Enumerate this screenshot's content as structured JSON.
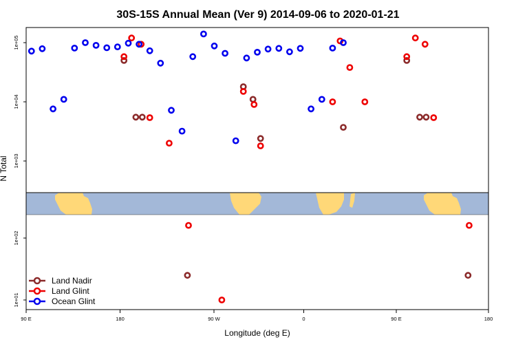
{
  "chart_data": {
    "type": "scatter",
    "title": "30S-15S Annual Mean (Ver 9)   2014-09-06 to 2020-01-21",
    "xlabel": "Longitude (deg E)",
    "ylabel": "N Total",
    "y_scale": "log",
    "ylim": [
      8,
      200000
    ],
    "x_tick_labels": [
      "90 E",
      "180",
      "90 W",
      "0",
      "90 E",
      "180"
    ],
    "y_tick_labels": [
      "1e+01",
      "1e+02",
      "1e+03",
      "1e+04",
      "1e+05"
    ],
    "colors": {
      "land_nadir": "#8B2A2A",
      "land_glint": "#EE0000",
      "ocean_glint": "#0000EE",
      "ocean": "#A3B8D8",
      "land": "#FFD878"
    },
    "legend": {
      "position": "bottom-left",
      "entries": [
        {
          "label": "Land Nadir",
          "color": "#8B2A2A"
        },
        {
          "label": "Land Glint",
          "color": "#EE0000"
        },
        {
          "label": "Ocean Glint",
          "color": "#0000EE"
        }
      ]
    },
    "series": [
      {
        "name": "Land Nadir",
        "color": "#8B2A2A",
        "points": [
          {
            "x": 1,
            "y": 50000
          },
          {
            "x": 12,
            "y": 5500
          },
          {
            "x": 18,
            "y": 5500
          },
          {
            "x": 60,
            "y": 25
          },
          {
            "x": 112,
            "y": 18000
          },
          {
            "x": 121,
            "y": 11000
          },
          {
            "x": 128,
            "y": 2400
          },
          {
            "x": 205,
            "y": 3700
          },
          {
            "x": 264,
            "y": 50000
          },
          {
            "x": 276,
            "y": 5500
          },
          {
            "x": 282,
            "y": 5500
          },
          {
            "x": 321,
            "y": 25
          }
        ]
      },
      {
        "name": "Land Glint",
        "color": "#EE0000",
        "points": [
          {
            "x": 1,
            "y": 58000
          },
          {
            "x": 8,
            "y": 120000
          },
          {
            "x": 17,
            "y": 94000
          },
          {
            "x": 25,
            "y": 5400
          },
          {
            "x": 43,
            "y": 2000
          },
          {
            "x": 61,
            "y": 160
          },
          {
            "x": 92,
            "y": 10
          },
          {
            "x": 112,
            "y": 15000
          },
          {
            "x": 122,
            "y": 9000
          },
          {
            "x": 128,
            "y": 1800
          },
          {
            "x": 195,
            "y": 10000
          },
          {
            "x": 202,
            "y": 107000
          },
          {
            "x": 211,
            "y": 38000
          },
          {
            "x": 225,
            "y": 10000
          },
          {
            "x": 264,
            "y": 58000
          },
          {
            "x": 272,
            "y": 120000
          },
          {
            "x": 281,
            "y": 94000
          },
          {
            "x": 289,
            "y": 5400
          },
          {
            "x": 322,
            "y": 160
          }
        ]
      },
      {
        "name": "Ocean Glint",
        "color": "#0000EE",
        "points": [
          {
            "x": -85,
            "y": 72000
          },
          {
            "x": -75,
            "y": 79000
          },
          {
            "x": -65,
            "y": 7600
          },
          {
            "x": -55,
            "y": 11000
          },
          {
            "x": -45,
            "y": 81000
          },
          {
            "x": -35,
            "y": 100000
          },
          {
            "x": -25,
            "y": 90000
          },
          {
            "x": -15,
            "y": 82000
          },
          {
            "x": -5,
            "y": 85000
          },
          {
            "x": 5,
            "y": 98000
          },
          {
            "x": 15,
            "y": 94000
          },
          {
            "x": 25,
            "y": 73000
          },
          {
            "x": 35,
            "y": 45000
          },
          {
            "x": 45,
            "y": 7200
          },
          {
            "x": 55,
            "y": 3200
          },
          {
            "x": 65,
            "y": 58000
          },
          {
            "x": 75,
            "y": 140000
          },
          {
            "x": 85,
            "y": 88000
          },
          {
            "x": 95,
            "y": 66000
          },
          {
            "x": 105,
            "y": 2200
          },
          {
            "x": 115,
            "y": 55000
          },
          {
            "x": 125,
            "y": 69000
          },
          {
            "x": 135,
            "y": 78000
          },
          {
            "x": 145,
            "y": 80000
          },
          {
            "x": 155,
            "y": 70000
          },
          {
            "x": 165,
            "y": 80000
          },
          {
            "x": 175,
            "y": 7600
          },
          {
            "x": 185,
            "y": 11000
          },
          {
            "x": 195,
            "y": 81000
          },
          {
            "x": 205,
            "y": 100000
          }
        ]
      }
    ]
  }
}
